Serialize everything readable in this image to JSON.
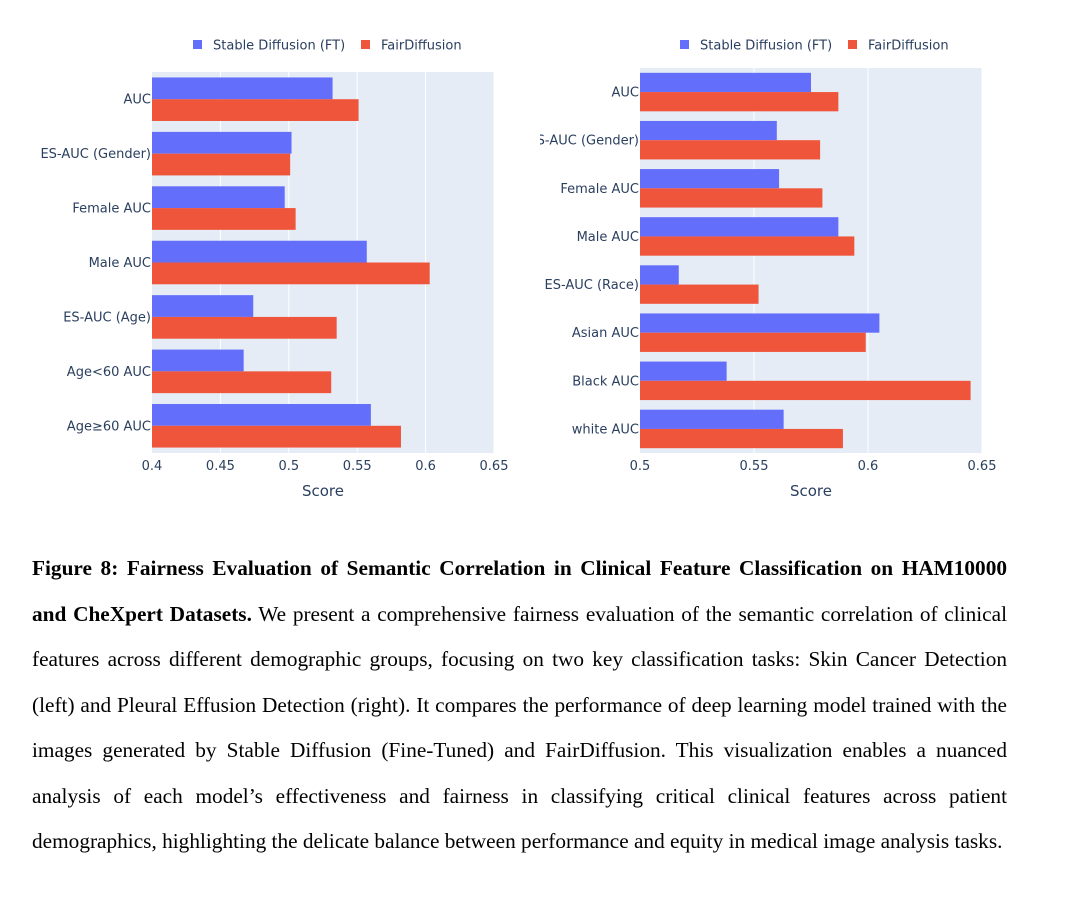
{
  "chart_data": [
    {
      "type": "bar",
      "orientation": "horizontal",
      "task": "Skin Cancer Detection (left)",
      "legend": [
        "Stable Diffusion (FT)",
        "FairDiffusion"
      ],
      "categories": [
        "AUC",
        "ES-AUC (Gender)",
        "Female AUC",
        "Male AUC",
        "ES-AUC (Age)",
        "Age<60 AUC",
        "Age≥60 AUC"
      ],
      "series": [
        {
          "name": "Stable Diffusion (FT)",
          "color": "#636efa",
          "values": [
            0.532,
            0.502,
            0.497,
            0.557,
            0.474,
            0.467,
            0.56
          ]
        },
        {
          "name": "FairDiffusion",
          "color": "#ef553b",
          "values": [
            0.551,
            0.501,
            0.505,
            0.603,
            0.535,
            0.531,
            0.582
          ]
        }
      ],
      "xlabel": "Score",
      "xlim": [
        0.4,
        0.65
      ],
      "xticks": [
        "0.4",
        "0.45",
        "0.5",
        "0.55",
        "0.6",
        "0.65"
      ],
      "grid": true
    },
    {
      "type": "bar",
      "orientation": "horizontal",
      "task": "Pleural Effusion Detection (right)",
      "legend": [
        "Stable Diffusion (FT)",
        "FairDiffusion"
      ],
      "categories": [
        "AUC",
        "ES-AUC (Gender)",
        "Female AUC",
        "Male AUC",
        "ES-AUC (Race)",
        "Asian AUC",
        "Black AUC",
        "white AUC"
      ],
      "series": [
        {
          "name": "Stable Diffusion (FT)",
          "color": "#636efa",
          "values": [
            0.575,
            0.56,
            0.561,
            0.587,
            0.517,
            0.605,
            0.538,
            0.563
          ]
        },
        {
          "name": "FairDiffusion",
          "color": "#ef553b",
          "values": [
            0.587,
            0.579,
            0.58,
            0.594,
            0.552,
            0.599,
            0.645,
            0.589
          ]
        }
      ],
      "xlabel": "Score",
      "xlim": [
        0.5,
        0.65
      ],
      "xticks": [
        "0.5",
        "0.55",
        "0.6",
        "0.65"
      ],
      "grid": true
    }
  ],
  "caption": {
    "label": "Figure 8",
    "title": ": Fairness Evaluation of Semantic Correlation in Clinical Feature Classification on HAM10000 and CheXpert Datasets.",
    "body": " We present a comprehensive fairness evaluation of the semantic correlation of clinical features across different demographic groups, focusing on two key classification tasks: Skin Cancer Detection (left) and Pleural Effusion Detection (right). It compares the performance of deep learning model trained with the images generated by Stable Diffusion (Fine-Tuned) and FairDiffusion. This visualization enables a nuanced analysis of each model’s effectiveness and fairness in classifying critical clinical features across patient demographics, highlighting the delicate balance between performance and equity in medical image analysis tasks."
  }
}
